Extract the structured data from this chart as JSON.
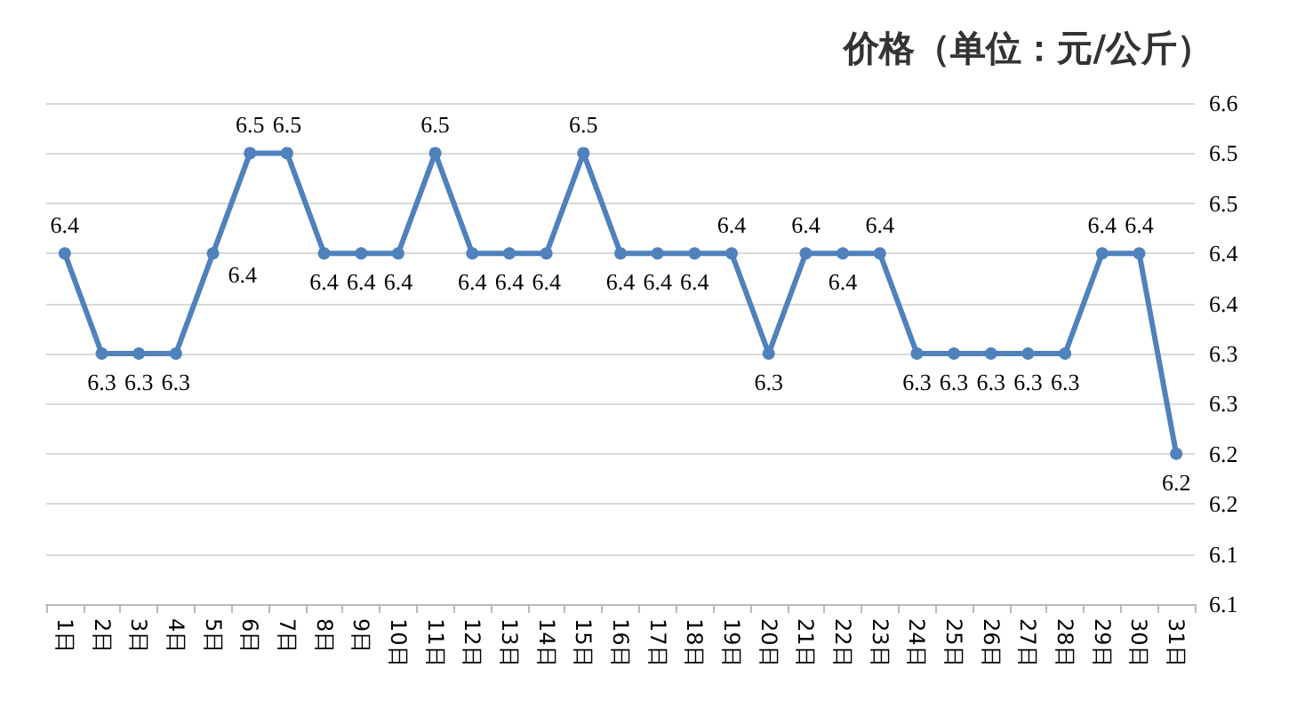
{
  "chart_data": {
    "type": "line",
    "title": "价格（单位：元/公斤）",
    "categories": [
      "1日",
      "2日",
      "3日",
      "4日",
      "5日",
      "6日",
      "7日",
      "8日",
      "9日",
      "10日",
      "11日",
      "12日",
      "13日",
      "14日",
      "15日",
      "16日",
      "17日",
      "18日",
      "19日",
      "20日",
      "21日",
      "22日",
      "23日",
      "24日",
      "25日",
      "26日",
      "27日",
      "28日",
      "29日",
      "30日",
      "31日"
    ],
    "series": [
      {
        "color": "#4f81bd",
        "values": [
          6.45,
          6.35,
          6.35,
          6.35,
          6.45,
          6.55,
          6.55,
          6.45,
          6.45,
          6.45,
          6.55,
          6.45,
          6.45,
          6.45,
          6.55,
          6.45,
          6.45,
          6.45,
          6.45,
          6.35,
          6.45,
          6.45,
          6.45,
          6.35,
          6.35,
          6.35,
          6.35,
          6.35,
          6.45,
          6.45,
          6.25
        ],
        "value_labels": [
          "6.4",
          "6.3",
          "6.3",
          "6.3",
          "6.4",
          "6.5",
          "6.5",
          "6.4",
          "6.4",
          "6.4",
          "6.5",
          "6.4",
          "6.4",
          "6.4",
          "6.5",
          "6.4",
          "6.4",
          "6.4",
          "6.4",
          "6.3",
          "6.4",
          "6.4",
          "6.4",
          "6.3",
          "6.3",
          "6.3",
          "6.3",
          "6.3",
          "6.4",
          "6.4",
          "6.2"
        ]
      }
    ],
    "ylim": [
      6.1,
      6.6
    ],
    "yticks": [
      {
        "value": 6.1,
        "label": "6.1"
      },
      {
        "value": 6.15,
        "label": "6.1"
      },
      {
        "value": 6.2,
        "label": "6.2"
      },
      {
        "value": 6.25,
        "label": "6.2"
      },
      {
        "value": 6.3,
        "label": "6.3"
      },
      {
        "value": 6.35,
        "label": "6.3"
      },
      {
        "value": 6.4,
        "label": "6.4"
      },
      {
        "value": 6.45,
        "label": "6.4"
      },
      {
        "value": 6.5,
        "label": "6.5"
      },
      {
        "value": 6.55,
        "label": "6.5"
      },
      {
        "value": 6.6,
        "label": "6.6"
      }
    ],
    "grid": "y",
    "marker": "circle",
    "line_style": "solid"
  }
}
